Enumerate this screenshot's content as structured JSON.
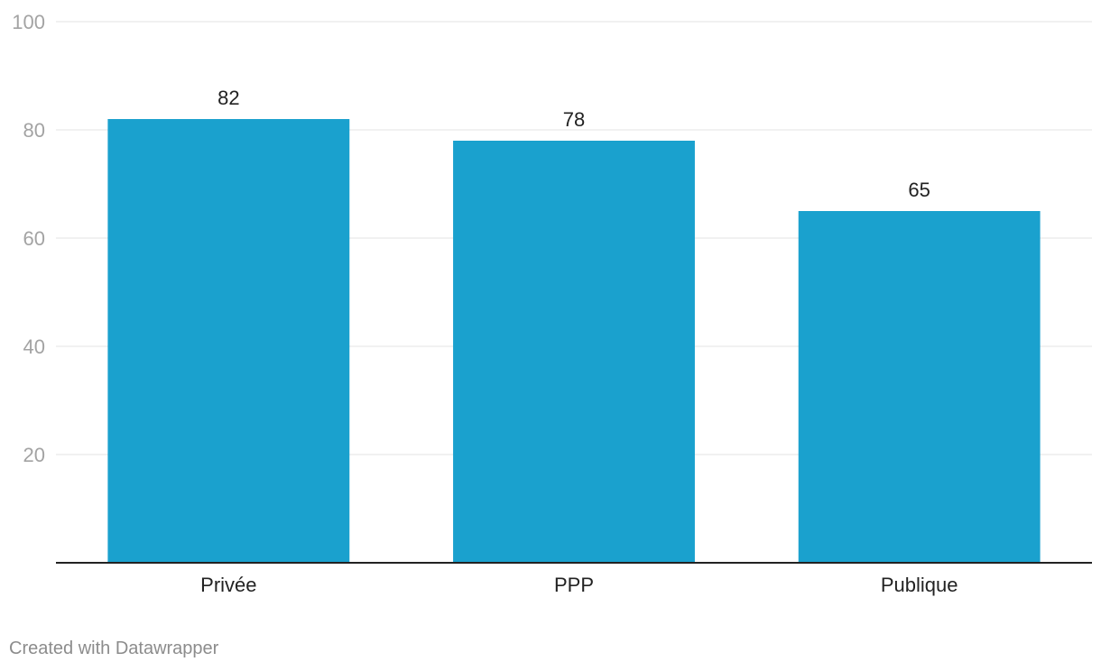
{
  "chart_data": {
    "type": "bar",
    "categories": [
      "Privée",
      "PPP",
      "Publique"
    ],
    "values": [
      82,
      78,
      65
    ],
    "value_labels": [
      "82",
      "78",
      "65"
    ],
    "yticks": [
      20,
      40,
      60,
      80,
      100
    ],
    "ytick_labels": [
      "20",
      "40",
      "60",
      "80",
      "100"
    ],
    "ylim": [
      0,
      100
    ],
    "grid": true,
    "bar_color": "#1aa1ce",
    "title": "",
    "xlabel": "",
    "ylabel": ""
  },
  "footer": {
    "credit": "Created with Datawrapper"
  }
}
